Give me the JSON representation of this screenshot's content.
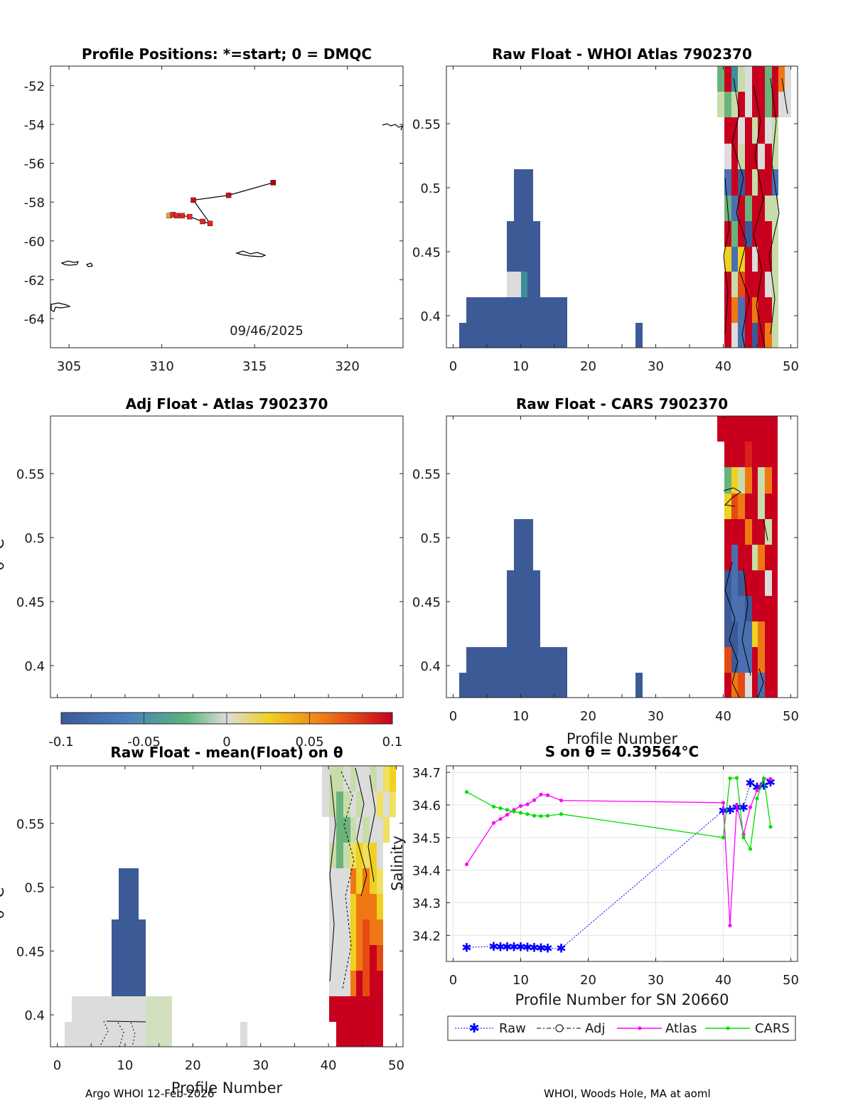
{
  "figure": {
    "footer_left": "Argo WHOI 12-Feb-2026",
    "footer_right": "WHOI, Woods Hole, MA at aoml"
  },
  "palette": {
    "blue": "#3c5a96",
    "gray": "#dcdcdc",
    "lightgreen": "#c8dcaa",
    "green": "#6ab47c",
    "teal": "#3e8e9c",
    "yellow": "#f0d020",
    "orange": "#f07814",
    "darkorange": "#e64a14",
    "red": "#c8001e"
  },
  "colorbar": {
    "min": -0.1,
    "max": 0.1,
    "ticks": [
      -0.1,
      -0.05,
      0,
      0.05,
      0.1
    ],
    "tick_labels": [
      "-0.1",
      "-0.05",
      "0",
      "0.05",
      "0.1"
    ]
  },
  "chart_data": [
    {
      "id": "map",
      "type": "scatter",
      "title": "Profile Positions: *=start; 0 = DMQC",
      "annotation": "09/46/2025",
      "xlim": [
        304,
        323
      ],
      "ylim": [
        -65.5,
        -51
      ],
      "xticks": [
        305,
        310,
        315,
        320
      ],
      "xtick_labels": [
        "305",
        "310",
        "315",
        "320"
      ],
      "yticks": [
        -52,
        -54,
        -56,
        -58,
        -60,
        -62,
        -64
      ],
      "ytick_labels": [
        "-52",
        "-54",
        "-56",
        "-58",
        "-60",
        "-62",
        "-64"
      ],
      "track": {
        "lon": [
          310.4,
          310.6,
          310.8,
          311.1,
          311.5,
          312.2,
          312.6,
          311.7,
          313.6,
          316.0
        ],
        "lat": [
          -58.7,
          -58.65,
          -58.7,
          -58.7,
          -58.75,
          -59.0,
          -59.1,
          -57.9,
          -57.65,
          -57.0
        ],
        "start_color": "#f0a040",
        "end_color": "#b00000"
      }
    },
    {
      "id": "atlas_raw",
      "type": "heatmap",
      "title": "Raw Float - WHOI Atlas  7902370",
      "xlim": [
        -1,
        51
      ],
      "ylim": [
        0.375,
        0.595
      ],
      "xticks": [
        0,
        10,
        20,
        30,
        40,
        50
      ],
      "xtick_labels": [
        "0",
        "10",
        "20",
        "30",
        "40",
        "50"
      ],
      "yticks": [
        0.4,
        0.45,
        0.5,
        0.55
      ],
      "ytick_labels": [
        "0.4",
        "0.45",
        "0.5",
        "0.55"
      ]
    },
    {
      "id": "atlas_adj",
      "type": "heatmap",
      "title": "Adj Float - Atlas  7902370",
      "xlim": [
        -1,
        51
      ],
      "ylim": [
        0.375,
        0.595
      ],
      "yticks": [
        0.4,
        0.45,
        0.5,
        0.55
      ],
      "ytick_labels": [
        "0.4",
        "0.45",
        "0.5",
        "0.55"
      ],
      "ylabel": "θ °C"
    },
    {
      "id": "cars_raw",
      "type": "heatmap",
      "title": "Raw Float - CARS  7902370",
      "xlabel": "Profile Number",
      "xlim": [
        -1,
        51
      ],
      "ylim": [
        0.375,
        0.595
      ],
      "xticks": [
        0,
        10,
        20,
        30,
        40,
        50
      ],
      "xtick_labels": [
        "0",
        "10",
        "20",
        "30",
        "40",
        "50"
      ],
      "yticks": [
        0.4,
        0.45,
        0.5,
        0.55
      ],
      "ytick_labels": [
        "0.4",
        "0.45",
        "0.5",
        "0.55"
      ]
    },
    {
      "id": "mean_raw",
      "type": "heatmap",
      "title": "Raw Float - mean(Float) on θ",
      "xlabel": "Profile Number",
      "ylabel": "θ °C",
      "xlim": [
        -1,
        51
      ],
      "ylim": [
        0.375,
        0.595
      ],
      "xticks": [
        0,
        10,
        20,
        30,
        40,
        50
      ],
      "xtick_labels": [
        "0",
        "10",
        "20",
        "30",
        "40",
        "50"
      ],
      "yticks": [
        0.4,
        0.45,
        0.5,
        0.55
      ],
      "ytick_labels": [
        "0.4",
        "0.45",
        "0.5",
        "0.55"
      ]
    },
    {
      "id": "salinity",
      "type": "line",
      "title": "S on θ = 0.39564°C",
      "xlabel": "Profile Number for SN 20660",
      "ylabel": "Salinity",
      "xlim": [
        -1,
        51
      ],
      "ylim": [
        34.12,
        34.72
      ],
      "xticks": [
        0,
        10,
        20,
        30,
        40,
        50
      ],
      "xtick_labels": [
        "0",
        "10",
        "20",
        "30",
        "40",
        "50"
      ],
      "yticks": [
        34.2,
        34.3,
        34.4,
        34.5,
        34.6,
        34.7
      ],
      "ytick_labels": [
        "34.2",
        "34.3",
        "34.4",
        "34.5",
        "34.6",
        "34.7"
      ],
      "legend": {
        "labels": [
          "Raw",
          "Adj",
          "Atlas",
          "CARS"
        ],
        "position": "below"
      },
      "series": [
        {
          "name": "Raw",
          "color": "#0000ff",
          "x": [
            2,
            6,
            7,
            8,
            9,
            10,
            11,
            12,
            13,
            14,
            16,
            40,
            41,
            42,
            43,
            44,
            45,
            46,
            47
          ],
          "y": [
            34.163,
            34.166,
            34.165,
            34.165,
            34.165,
            34.165,
            34.164,
            34.163,
            34.162,
            34.16,
            34.16,
            34.583,
            34.585,
            34.592,
            34.592,
            34.668,
            34.655,
            34.66,
            34.67
          ]
        },
        {
          "name": "Atlas",
          "color": "#ff00ff",
          "x": [
            2,
            6,
            7,
            8,
            9,
            10,
            11,
            12,
            13,
            14,
            16,
            40,
            41,
            42,
            43,
            44,
            45,
            46,
            47
          ],
          "y": [
            34.418,
            34.545,
            34.557,
            34.57,
            34.585,
            34.597,
            34.602,
            34.615,
            34.632,
            34.63,
            34.614,
            34.607,
            34.23,
            34.6,
            34.51,
            34.593,
            34.645,
            34.68,
            34.68
          ]
        },
        {
          "name": "CARS",
          "color": "#00dd00",
          "x": [
            2,
            6,
            7,
            8,
            9,
            10,
            11,
            12,
            13,
            14,
            16,
            40,
            41,
            42,
            43,
            44,
            45,
            46,
            47
          ],
          "y": [
            34.64,
            34.595,
            34.59,
            34.585,
            34.58,
            34.576,
            34.572,
            34.567,
            34.566,
            34.567,
            34.572,
            34.5,
            34.682,
            34.683,
            34.5,
            34.465,
            34.62,
            34.682,
            34.533
          ]
        }
      ]
    }
  ]
}
